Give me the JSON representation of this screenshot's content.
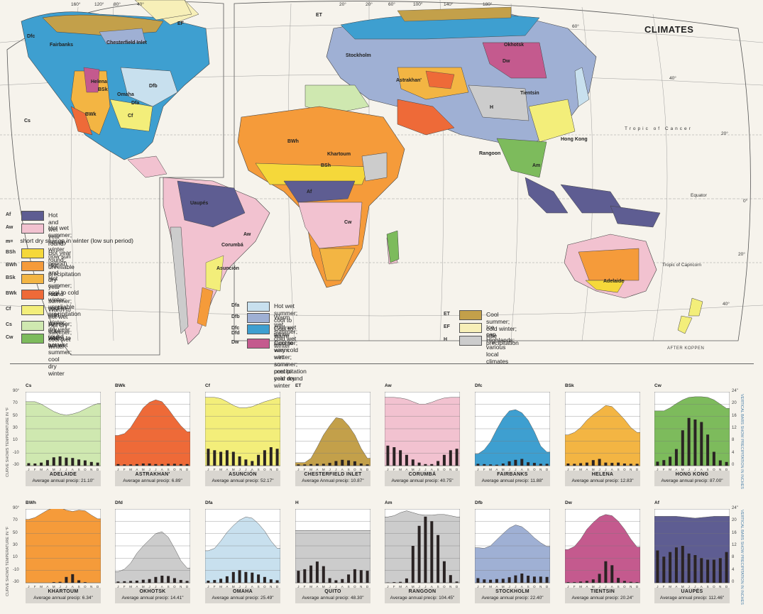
{
  "title": "CLIMATES",
  "credit": "AFTER KOPPEN",
  "colors": {
    "Af": "#5e5d92",
    "Aw": "#f2c2d0",
    "BSh": "#f5d83a",
    "BWh": "#f59b3a",
    "BSk": "#f3b543",
    "BWk": "#ee6a38",
    "Cf": "#f3ee7a",
    "Cs": "#cfe8b0",
    "Cw": "#7dbb5c",
    "Dfa": "#c8e0ee",
    "Dfb": "#9fb0d4",
    "Dfc": "#3e9fd0",
    "Dw": "#c45a8e",
    "ET": "#c3a04a",
    "EF": "#f7efb8",
    "H": "#cccccc",
    "ocean": "#f6f3ec",
    "line": "#444444"
  },
  "degree_labels": {
    "top": [
      "160°",
      "120°",
      "80°",
      "40°",
      "20°",
      "20°",
      "60°",
      "100°",
      "140°",
      "180°"
    ],
    "right": [
      "60°",
      "40°",
      "20°",
      "0°",
      "20°",
      "40°"
    ],
    "parallels": [
      "Tropic of Cancer",
      "Equator",
      "Tropic of Capricorn"
    ]
  },
  "places": [
    "Fairbanks",
    "Chesterfield Inlet",
    "Helena",
    "Omaha",
    "Stockholm",
    "Astrakhan'",
    "Okhotsk",
    "Tientsin",
    "Hong Kong",
    "Rangoon",
    "Khartoum",
    "Uaupés",
    "Corumbá",
    "Asunción",
    "Adelaide"
  ],
  "zone_codes": [
    "Dfc",
    "EF",
    "ET",
    "Dfb",
    "Dfa",
    "BSk",
    "BWk",
    "BSh",
    "BWh",
    "Cs",
    "Cf",
    "Cw",
    "Aw",
    "Af",
    "Dw",
    "H",
    "Am"
  ],
  "legend": {
    "note": {
      "code": "m=",
      "text": "short dry season in winter (low sun period)"
    },
    "groups": [
      [
        {
          "code": "Af",
          "text": "Hot and wet year round"
        },
        {
          "code": "Aw",
          "text": "Hot wet summer; hot dry\nwinter (low sun period)"
        }
      ],
      [
        {
          "code": "BSh",
          "text": "Hot year round; unreliable precipitation"
        },
        {
          "code": "BWh",
          "text": "Hot and dry year round"
        },
        {
          "code": "BSk",
          "text": "Hot summer; cool to cold winter;\nunreliable precipitation"
        },
        {
          "code": "BWk",
          "text": "Hot summer; cool to cold winter;\ndry year round"
        },
        {
          "code": "Cf",
          "text": "Warm to hot wet summer; cool\nwet winter"
        },
        {
          "code": "Cs",
          "text": "Hot dry summer; cool wet winter"
        },
        {
          "code": "Cw",
          "text": "Warm to hot wet summer; cool\ndry winter"
        }
      ],
      [
        {
          "code": "Dfa",
          "text": "Hot wet summer; cool to cold wet winter"
        },
        {
          "code": "Dfb",
          "text": "Warm wet summer; cold wet winter"
        },
        {
          "code": "Dfc\nDfd",
          "text": "Cool to warm summer; very cold winter;\nsome precipitation year round"
        },
        {
          "code": "Dw",
          "text": "Cool to warm wet summer; cool to cold dry winter"
        }
      ],
      [
        {
          "code": "ET",
          "text": "Cool summer; cold winter; little precipitation"
        },
        {
          "code": "EF",
          "text": "Ice cap"
        },
        {
          "code": "H",
          "text": "Highlands; various local climates"
        }
      ]
    ]
  },
  "chart_data": {
    "type": "area+bar",
    "months": [
      "J",
      "F",
      "M",
      "A",
      "M",
      "J",
      "J",
      "A",
      "S",
      "O",
      "N",
      "D"
    ],
    "temp_axis_label": "CURVE SHOWS TEMPERATURE IN °F",
    "precip_axis_label": "VERTICAL BARS SHOW PRECIPITATION IN INCHES",
    "temp_ticks": [
      "90°",
      "70",
      "50",
      "30",
      "10",
      "-10",
      "-30"
    ],
    "precip_ticks": [
      "24\"",
      "20",
      "16",
      "12",
      "8",
      "4",
      "0"
    ],
    "temp_range": [
      -30,
      90
    ],
    "precip_range": [
      0,
      24
    ],
    "stations": [
      {
        "code": "Cs",
        "city": "ADELAIDE",
        "precip_label": "Average annual precip: 21.10\"",
        "temp": [
          74,
          74,
          70,
          64,
          58,
          54,
          52,
          54,
          57,
          62,
          67,
          71
        ],
        "precip": [
          0.8,
          0.7,
          1.0,
          1.8,
          2.7,
          3.0,
          2.6,
          2.5,
          2.0,
          1.7,
          1.2,
          1.0
        ]
      },
      {
        "code": "BWk",
        "city": "ASTRAKHAN'",
        "precip_label": "Average annual precip: 6.89\"",
        "temp": [
          19,
          22,
          32,
          48,
          64,
          73,
          77,
          74,
          62,
          48,
          35,
          25
        ],
        "precip": [
          0.5,
          0.4,
          0.4,
          0.5,
          0.7,
          0.7,
          0.5,
          0.5,
          0.6,
          0.6,
          0.5,
          0.5
        ]
      },
      {
        "code": "Cf",
        "city": "ASUNCIÓN",
        "precip_label": "Average annual precip: 52.17\"",
        "temp": [
          81,
          81,
          79,
          74,
          68,
          64,
          64,
          66,
          70,
          74,
          77,
          80
        ],
        "precip": [
          5.5,
          5.0,
          4.5,
          5.0,
          4.5,
          3.0,
          2.0,
          1.5,
          3.5,
          5.0,
          6.0,
          5.5
        ]
      },
      {
        "code": "ET",
        "city": "CHESTERFIELD INLET",
        "precip_label": "Average Annual precip: 10.87\"",
        "temp": [
          -25,
          -25,
          -18,
          0,
          20,
          35,
          48,
          46,
          35,
          20,
          -2,
          -18
        ],
        "precip": [
          0.4,
          0.4,
          0.5,
          0.6,
          0.6,
          0.9,
          1.5,
          1.9,
          1.7,
          1.4,
          0.7,
          0.4
        ]
      },
      {
        "code": "Aw",
        "city": "CORUMBÁ",
        "precip_label": "Average annual precip: 40.75\"",
        "temp": [
          81,
          81,
          80,
          78,
          74,
          70,
          70,
          73,
          77,
          80,
          81,
          81
        ],
        "precip": [
          6.5,
          6.0,
          5.0,
          3.5,
          2.0,
          1.0,
          0.5,
          0.5,
          1.5,
          3.5,
          5.0,
          5.5
        ]
      },
      {
        "code": "Dfc",
        "city": "FAIRBANKS",
        "precip_label": "Average annual precip: 11.88\"",
        "temp": [
          -11,
          -4,
          9,
          29,
          47,
          59,
          61,
          56,
          44,
          25,
          2,
          -8
        ],
        "precip": [
          0.6,
          0.5,
          0.4,
          0.3,
          0.7,
          1.4,
          1.9,
          2.2,
          1.1,
          0.9,
          0.6,
          0.6
        ]
      },
      {
        "code": "BSk",
        "city": "HELENA",
        "precip_label": "Average annual precip: 12.83\"",
        "temp": [
          20,
          24,
          32,
          44,
          53,
          60,
          68,
          66,
          56,
          45,
          32,
          24
        ],
        "precip": [
          0.7,
          0.6,
          0.8,
          1.0,
          1.8,
          2.2,
          1.0,
          0.9,
          1.0,
          0.7,
          0.6,
          0.6
        ]
      },
      {
        "code": "Cw",
        "city": "HONG KONG",
        "precip_label": "Average annual precip: 87.00\"",
        "temp": [
          59,
          59,
          64,
          71,
          77,
          81,
          82,
          82,
          81,
          77,
          70,
          63
        ],
        "precip": [
          1.3,
          1.8,
          2.9,
          5.4,
          11.5,
          15.5,
          15.0,
          14.2,
          10.1,
          4.5,
          1.7,
          1.2
        ]
      },
      {
        "code": "BWh",
        "city": "KHARTOUM",
        "precip_label": "Average annual precip: 6.34\"",
        "temp": [
          73,
          76,
          82,
          88,
          92,
          92,
          88,
          86,
          88,
          87,
          80,
          74
        ],
        "precip": [
          0,
          0,
          0,
          0,
          0.2,
          0.3,
          1.9,
          2.8,
          0.8,
          0.2,
          0,
          0
        ]
      },
      {
        "code": "Dfd",
        "city": "OKHOTSK",
        "precip_label": "Average annual precip: 14.41\"",
        "temp": [
          -12,
          -8,
          2,
          18,
          30,
          40,
          50,
          53,
          44,
          26,
          6,
          -6
        ],
        "precip": [
          0.4,
          0.5,
          0.6,
          0.7,
          1.0,
          1.2,
          1.9,
          2.3,
          2.2,
          1.5,
          0.9,
          0.6
        ]
      },
      {
        "code": "Dfa",
        "city": "OMAHA",
        "precip_label": "Average annual precip: 25.49\"",
        "temp": [
          22,
          26,
          38,
          52,
          63,
          72,
          77,
          75,
          66,
          54,
          38,
          26
        ],
        "precip": [
          0.7,
          0.9,
          1.3,
          2.1,
          3.5,
          4.1,
          3.5,
          3.3,
          2.7,
          1.9,
          1.1,
          0.8
        ]
      },
      {
        "code": "H",
        "city": "QUITO",
        "precip_label": "Average annual precip: 48.30\"",
        "temp": [
          55,
          55,
          55,
          55,
          55,
          55,
          55,
          55,
          55,
          55,
          55,
          55
        ],
        "precip": [
          3.9,
          4.4,
          5.6,
          6.9,
          5.4,
          1.5,
          0.8,
          1.2,
          2.7,
          4.4,
          4.1,
          3.9
        ]
      },
      {
        "code": "Am",
        "city": "RANGOON",
        "precip_label": "Average annual precip: 104.45\"",
        "temp": [
          77,
          79,
          84,
          87,
          84,
          81,
          80,
          80,
          81,
          81,
          79,
          77
        ],
        "precip": [
          0.1,
          0.2,
          0.3,
          1.4,
          12.0,
          18.5,
          21.5,
          20.0,
          15.5,
          7.0,
          2.5,
          0.4
        ]
      },
      {
        "code": "Dfb",
        "city": "STOCKHOLM",
        "precip_label": "Average annual precip: 22.40\"",
        "temp": [
          27,
          26,
          30,
          40,
          50,
          59,
          64,
          61,
          53,
          43,
          35,
          29
        ],
        "precip": [
          1.5,
          1.1,
          1.0,
          1.2,
          1.3,
          1.8,
          2.4,
          3.0,
          2.3,
          2.0,
          2.0,
          1.9
        ]
      },
      {
        "code": "Dw",
        "city": "TIENTSIN",
        "precip_label": "Average annual precip: 20.24\"",
        "temp": [
          24,
          29,
          41,
          57,
          68,
          77,
          81,
          79,
          70,
          57,
          41,
          28
        ],
        "precip": [
          0.2,
          0.2,
          0.4,
          0.6,
          1.1,
          2.9,
          7.0,
          5.7,
          1.6,
          0.6,
          0.3,
          0.2
        ]
      },
      {
        "code": "Af",
        "city": "UAUPÉS",
        "precip_label": "Average annual precip: 112.46\"",
        "temp": [
          78,
          78,
          78,
          78,
          77,
          76,
          75,
          76,
          77,
          78,
          78,
          78
        ],
        "precip": [
          10.5,
          8.5,
          10.0,
          11.5,
          12.0,
          9.5,
          9.0,
          8.0,
          7.5,
          7.5,
          8.0,
          10.0
        ]
      }
    ]
  }
}
